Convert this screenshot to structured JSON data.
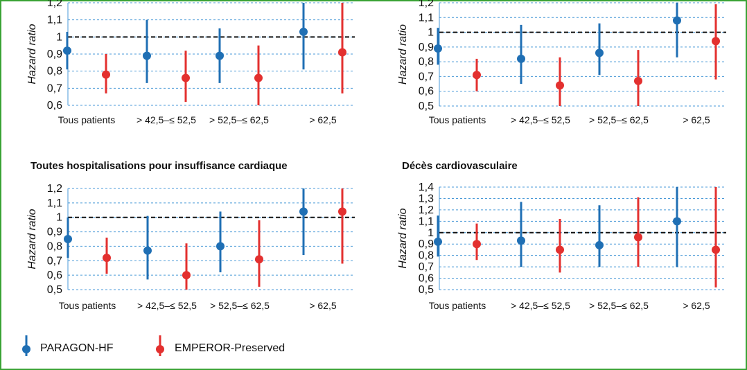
{
  "legend": {
    "items": [
      {
        "label": "PARAGON-HF",
        "color": "#1f6fb4"
      },
      {
        "label": "EMPEROR-Preserved",
        "color": "#e3302f"
      }
    ]
  },
  "chart_data": [
    {
      "type": "forest",
      "title": "",
      "ylabel": "Hazard ratio",
      "categories": [
        "Tous patients",
        "> 42,5–≤ 52,5",
        "> 52,5–≤ 62,5",
        "> 62,5"
      ],
      "yticks": [
        "0,6",
        "0,7",
        "0,8",
        "0,9",
        "1",
        "1,1",
        "1,2"
      ],
      "ylim": [
        0.6,
        1.2
      ],
      "reference_line": 1,
      "series": [
        {
          "name": "PARAGON-HF",
          "color": "#1f6fb4",
          "point": [
            0.92,
            0.89,
            0.89,
            1.03
          ],
          "low": [
            0.81,
            0.73,
            0.73,
            0.81
          ],
          "high": [
            1.03,
            1.1,
            1.05,
            1.2
          ]
        },
        {
          "name": "EMPEROR-Preserved",
          "color": "#e3302f",
          "point": [
            0.78,
            0.76,
            0.76,
            0.91
          ],
          "low": [
            0.67,
            0.62,
            0.6,
            0.67
          ],
          "high": [
            0.9,
            0.92,
            0.95,
            1.2
          ]
        }
      ]
    },
    {
      "type": "forest",
      "title": "",
      "ylabel": "Hazard ratio",
      "categories": [
        "Tous patients",
        "> 42,5–≤ 52,5",
        "> 52,5–≤ 62,5",
        "> 62,5"
      ],
      "yticks": [
        "0,5",
        "0,6",
        "0,7",
        "0,8",
        "0,9",
        "1",
        "1,1",
        "1,2"
      ],
      "ylim": [
        0.5,
        1.2
      ],
      "reference_line": 1,
      "series": [
        {
          "name": "PARAGON-HF",
          "color": "#1f6fb4",
          "point": [
            0.89,
            0.82,
            0.86,
            1.08
          ],
          "low": [
            0.78,
            0.65,
            0.71,
            0.83
          ],
          "high": [
            1.03,
            1.05,
            1.06,
            1.2
          ]
        },
        {
          "name": "EMPEROR-Preserved",
          "color": "#e3302f",
          "point": [
            0.71,
            0.64,
            0.67,
            0.94
          ],
          "low": [
            0.6,
            0.5,
            0.5,
            0.68
          ],
          "high": [
            0.82,
            0.83,
            0.88,
            1.19
          ]
        }
      ]
    },
    {
      "type": "forest",
      "title": "Toutes hospitalisations pour insuffisance cardiaque",
      "ylabel": "Hazard ratio",
      "categories": [
        "Tous patients",
        "> 42,5–≤ 52,5",
        "> 52,5–≤ 62,5",
        "> 62,5"
      ],
      "yticks": [
        "0,5",
        "0,6",
        "0,7",
        "0,8",
        "0,9",
        "1",
        "1,1",
        "1,2"
      ],
      "ylim": [
        0.5,
        1.2
      ],
      "reference_line": 1,
      "series": [
        {
          "name": "PARAGON-HF",
          "color": "#1f6fb4",
          "point": [
            0.85,
            0.77,
            0.8,
            1.04
          ],
          "low": [
            0.72,
            0.57,
            0.62,
            0.74
          ],
          "high": [
            1.0,
            1.01,
            1.04,
            1.2
          ]
        },
        {
          "name": "EMPEROR-Preserved",
          "color": "#e3302f",
          "point": [
            0.72,
            0.6,
            0.71,
            1.04
          ],
          "low": [
            0.61,
            0.5,
            0.52,
            0.68
          ],
          "high": [
            0.86,
            0.82,
            0.98,
            1.2
          ]
        }
      ]
    },
    {
      "type": "forest",
      "title": "Décès cardiovasculaire",
      "ylabel": "Hazard ratio",
      "categories": [
        "Tous patients",
        "> 42,5–≤ 52,5",
        "> 52,5–≤ 62,5",
        "> 62,5"
      ],
      "yticks": [
        "0,5",
        "0,6",
        "0,7",
        "0,8",
        "0,9",
        "1",
        "1,1",
        "1,2",
        "1,3",
        "1,4"
      ],
      "ylim": [
        0.5,
        1.4
      ],
      "reference_line": 1,
      "series": [
        {
          "name": "PARAGON-HF",
          "color": "#1f6fb4",
          "point": [
            0.92,
            0.93,
            0.89,
            1.1
          ],
          "low": [
            0.79,
            0.7,
            0.7,
            0.7
          ],
          "high": [
            1.15,
            1.27,
            1.24,
            1.4
          ]
        },
        {
          "name": "EMPEROR-Preserved",
          "color": "#e3302f",
          "point": [
            0.9,
            0.85,
            0.96,
            0.85
          ],
          "low": [
            0.76,
            0.65,
            0.7,
            0.52
          ],
          "high": [
            1.08,
            1.12,
            1.31,
            1.4
          ]
        }
      ]
    }
  ]
}
